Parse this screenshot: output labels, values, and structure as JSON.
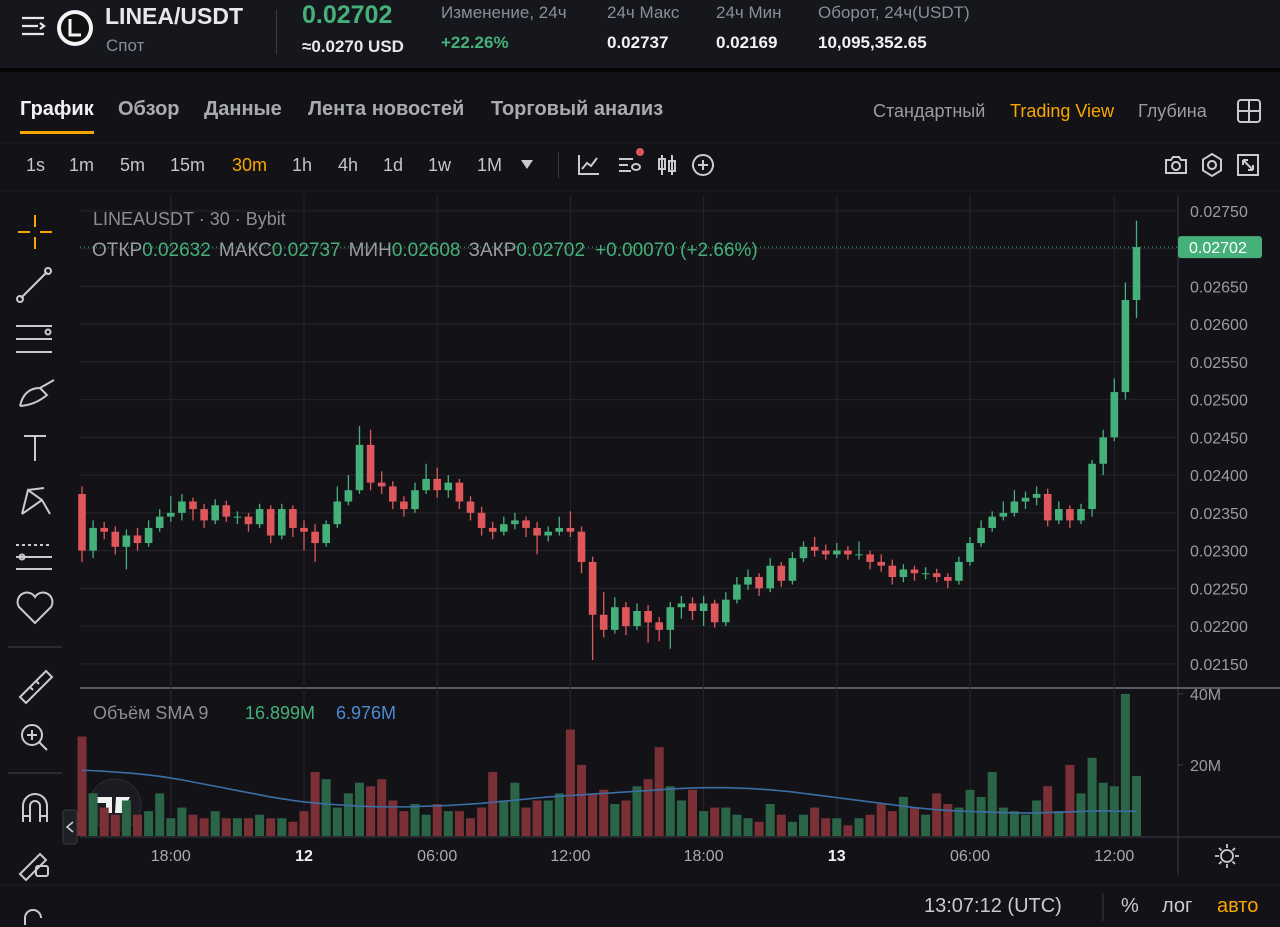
{
  "header": {
    "symbol": "LINEA/USDT",
    "market": "Спот",
    "price": "0.02702",
    "price_usd": "≈0.0270 USD",
    "stats": [
      {
        "label": "Изменение, 24ч",
        "value": "+22.26%",
        "positive": true
      },
      {
        "label": "24ч Макс",
        "value": "0.02737"
      },
      {
        "label": "24ч Мин",
        "value": "0.02169"
      },
      {
        "label": "Оборот, 24ч(USDT)",
        "value": "10,095,352.65"
      }
    ]
  },
  "tabs": [
    "График",
    "Обзор",
    "Данные",
    "Лента новостей",
    "Торговый анализ"
  ],
  "active_tab": 0,
  "views": [
    "Стандартный",
    "Trading View",
    "Глубина"
  ],
  "active_view": 1,
  "timeframes": [
    "1s",
    "1m",
    "5m",
    "15m",
    "30m",
    "1h",
    "4h",
    "1d",
    "1w",
    "1M"
  ],
  "active_timeframe": 4,
  "chart_data": {
    "type": "candlestick",
    "title": "LINEAUSDT · 30 · Bybit",
    "ohlc_legend": [
      {
        "label": "ОТКР",
        "value": "0.02632"
      },
      {
        "label": "МАКС",
        "value": "0.02737"
      },
      {
        "label": "МИН",
        "value": "0.02608"
      },
      {
        "label": "ЗАКР",
        "value": "0.02702"
      }
    ],
    "change": "+0.00070 (+2.66%)",
    "last_price_label": "0.02702",
    "colors": {
      "up": "#45b07a",
      "down": "#e0575b",
      "up_volume": "#2b6547",
      "down_volume": "#7a3035"
    },
    "ylim": [
      0.02118,
      0.02771
    ],
    "yticks": [
      {
        "value": 0.0215,
        "label": "0.02150"
      },
      {
        "value": 0.022,
        "label": "0.02200"
      },
      {
        "value": 0.0225,
        "label": "0.02250"
      },
      {
        "value": 0.023,
        "label": "0.02300"
      },
      {
        "value": 0.0235,
        "label": "0.02350"
      },
      {
        "value": 0.024,
        "label": "0.02400"
      },
      {
        "value": 0.0245,
        "label": "0.02450"
      },
      {
        "value": 0.025,
        "label": "0.02500"
      },
      {
        "value": 0.0255,
        "label": "0.02550"
      },
      {
        "value": 0.026,
        "label": "0.02600"
      },
      {
        "value": 0.0265,
        "label": "0.02650"
      },
      {
        "value": 0.027,
        "label": "0.02700"
      },
      {
        "value": 0.0275,
        "label": "0.02750"
      }
    ],
    "grid": true,
    "xticks": [
      {
        "index": 8,
        "label": "18:00"
      },
      {
        "index": 20,
        "label": "12",
        "day": true
      },
      {
        "index": 32,
        "label": "06:00"
      },
      {
        "index": 44,
        "label": "12:00"
      },
      {
        "index": 56,
        "label": "18:00"
      },
      {
        "index": 68,
        "label": "13",
        "day": true
      },
      {
        "index": 80,
        "label": "06:00"
      },
      {
        "index": 93,
        "label": "12:00"
      }
    ],
    "candles": [
      [
        0.02375,
        0.02385,
        0.02285,
        0.023
      ],
      [
        0.023,
        0.0234,
        0.0229,
        0.0233
      ],
      [
        0.0233,
        0.02338,
        0.02315,
        0.02325
      ],
      [
        0.02325,
        0.02332,
        0.02295,
        0.02305
      ],
      [
        0.02305,
        0.02328,
        0.02275,
        0.0232
      ],
      [
        0.0232,
        0.0233,
        0.023,
        0.0231
      ],
      [
        0.0231,
        0.0234,
        0.02305,
        0.0233
      ],
      [
        0.0233,
        0.02355,
        0.02325,
        0.02345
      ],
      [
        0.02345,
        0.02372,
        0.02338,
        0.0235
      ],
      [
        0.0235,
        0.02375,
        0.0234,
        0.02365
      ],
      [
        0.02365,
        0.0237,
        0.0234,
        0.02355
      ],
      [
        0.02355,
        0.02362,
        0.0233,
        0.0234
      ],
      [
        0.0234,
        0.02368,
        0.02335,
        0.0236
      ],
      [
        0.0236,
        0.02366,
        0.02338,
        0.02345
      ],
      [
        0.02345,
        0.02352,
        0.02335,
        0.02345
      ],
      [
        0.02345,
        0.0235,
        0.02325,
        0.02335
      ],
      [
        0.02335,
        0.02362,
        0.0233,
        0.02355
      ],
      [
        0.02355,
        0.0236,
        0.0231,
        0.0232
      ],
      [
        0.0232,
        0.02362,
        0.02315,
        0.02355
      ],
      [
        0.02355,
        0.0236,
        0.02318,
        0.0233
      ],
      [
        0.0233,
        0.0234,
        0.023,
        0.02325
      ],
      [
        0.02325,
        0.02335,
        0.02285,
        0.0231
      ],
      [
        0.0231,
        0.0234,
        0.02305,
        0.02335
      ],
      [
        0.02335,
        0.02385,
        0.0233,
        0.02365
      ],
      [
        0.02365,
        0.024,
        0.0236,
        0.0238
      ],
      [
        0.0238,
        0.02465,
        0.02375,
        0.0244
      ],
      [
        0.0244,
        0.0246,
        0.0238,
        0.0239
      ],
      [
        0.0239,
        0.02405,
        0.02375,
        0.02385
      ],
      [
        0.02385,
        0.02392,
        0.02355,
        0.02365
      ],
      [
        0.02365,
        0.02372,
        0.02345,
        0.02355
      ],
      [
        0.02355,
        0.0239,
        0.0235,
        0.0238
      ],
      [
        0.0238,
        0.02415,
        0.02375,
        0.02395
      ],
      [
        0.02395,
        0.0241,
        0.0237,
        0.0238
      ],
      [
        0.0238,
        0.024,
        0.0237,
        0.0239
      ],
      [
        0.0239,
        0.02395,
        0.02355,
        0.02365
      ],
      [
        0.02365,
        0.02372,
        0.0234,
        0.0235
      ],
      [
        0.0235,
        0.02358,
        0.0232,
        0.0233
      ],
      [
        0.0233,
        0.02338,
        0.02315,
        0.02325
      ],
      [
        0.02325,
        0.02345,
        0.0232,
        0.02335
      ],
      [
        0.02335,
        0.0235,
        0.02328,
        0.0234
      ],
      [
        0.0234,
        0.02345,
        0.02318,
        0.0233
      ],
      [
        0.0233,
        0.02338,
        0.02295,
        0.0232
      ],
      [
        0.0232,
        0.02332,
        0.02312,
        0.02325
      ],
      [
        0.02325,
        0.02345,
        0.0232,
        0.0233
      ],
      [
        0.0233,
        0.02352,
        0.02318,
        0.02325
      ],
      [
        0.02325,
        0.02332,
        0.0227,
        0.02285
      ],
      [
        0.02285,
        0.02292,
        0.02155,
        0.02215
      ],
      [
        0.02215,
        0.02245,
        0.02185,
        0.02195
      ],
      [
        0.02195,
        0.02238,
        0.0219,
        0.02225
      ],
      [
        0.02225,
        0.02232,
        0.02188,
        0.022
      ],
      [
        0.022,
        0.0223,
        0.02195,
        0.0222
      ],
      [
        0.0222,
        0.02228,
        0.02178,
        0.02205
      ],
      [
        0.02205,
        0.02212,
        0.0218,
        0.02195
      ],
      [
        0.02195,
        0.02232,
        0.0217,
        0.02225
      ],
      [
        0.02225,
        0.0224,
        0.0221,
        0.0223
      ],
      [
        0.0223,
        0.02238,
        0.02208,
        0.0222
      ],
      [
        0.0222,
        0.0224,
        0.022,
        0.0223
      ],
      [
        0.0223,
        0.02235,
        0.02198,
        0.02205
      ],
      [
        0.02205,
        0.02245,
        0.022,
        0.02235
      ],
      [
        0.02235,
        0.02265,
        0.0223,
        0.02255
      ],
      [
        0.02255,
        0.02275,
        0.02248,
        0.02265
      ],
      [
        0.02265,
        0.0227,
        0.0224,
        0.0225
      ],
      [
        0.0225,
        0.0229,
        0.02245,
        0.0228
      ],
      [
        0.0228,
        0.02285,
        0.02252,
        0.0226
      ],
      [
        0.0226,
        0.02298,
        0.02255,
        0.0229
      ],
      [
        0.0229,
        0.02312,
        0.02285,
        0.02305
      ],
      [
        0.02305,
        0.02318,
        0.02292,
        0.023
      ],
      [
        0.023,
        0.02308,
        0.02288,
        0.02295
      ],
      [
        0.02295,
        0.0231,
        0.0229,
        0.023
      ],
      [
        0.023,
        0.02306,
        0.02288,
        0.02295
      ],
      [
        0.02295,
        0.02312,
        0.02288,
        0.02295
      ],
      [
        0.02295,
        0.023,
        0.02275,
        0.02285
      ],
      [
        0.02285,
        0.02295,
        0.02272,
        0.0228
      ],
      [
        0.0228,
        0.02288,
        0.02255,
        0.02265
      ],
      [
        0.02265,
        0.02282,
        0.02258,
        0.02275
      ],
      [
        0.02275,
        0.0228,
        0.0226,
        0.0227
      ],
      [
        0.0227,
        0.02278,
        0.02262,
        0.0227
      ],
      [
        0.0227,
        0.02276,
        0.02258,
        0.02265
      ],
      [
        0.02265,
        0.0227,
        0.0225,
        0.0226
      ],
      [
        0.0226,
        0.02292,
        0.02255,
        0.02285
      ],
      [
        0.02285,
        0.02318,
        0.0228,
        0.0231
      ],
      [
        0.0231,
        0.0234,
        0.02305,
        0.0233
      ],
      [
        0.0233,
        0.02352,
        0.02325,
        0.02345
      ],
      [
        0.02345,
        0.02365,
        0.0234,
        0.0235
      ],
      [
        0.0235,
        0.0238,
        0.02345,
        0.02365
      ],
      [
        0.02365,
        0.02378,
        0.02355,
        0.0237
      ],
      [
        0.0237,
        0.02385,
        0.0236,
        0.02375
      ],
      [
        0.02375,
        0.02382,
        0.02332,
        0.0234
      ],
      [
        0.0234,
        0.02365,
        0.02335,
        0.02355
      ],
      [
        0.02355,
        0.0236,
        0.0233,
        0.0234
      ],
      [
        0.0234,
        0.02362,
        0.02335,
        0.02355
      ],
      [
        0.02355,
        0.0242,
        0.02345,
        0.02415
      ],
      [
        0.02415,
        0.0246,
        0.024,
        0.0245
      ],
      [
        0.0245,
        0.02528,
        0.02445,
        0.0251
      ],
      [
        0.0251,
        0.02655,
        0.025,
        0.02632
      ],
      [
        0.02632,
        0.02737,
        0.02608,
        0.02702
      ]
    ],
    "volume": {
      "title": "Объём SMA 9",
      "legend_values": [
        "16.899M",
        "6.976M"
      ],
      "sma_color": "#3c6ea6",
      "ylim": [
        0,
        41.1
      ],
      "yticks": [
        {
          "value": 20,
          "label": "20M"
        },
        {
          "value": 40,
          "label": "40M"
        }
      ],
      "values": [
        28,
        12,
        8,
        6,
        10,
        6,
        7,
        12,
        5,
        8,
        6,
        5,
        7,
        5,
        5,
        5,
        6,
        5,
        5,
        4,
        7,
        18,
        16,
        8,
        12,
        15,
        14,
        16,
        10,
        7,
        9,
        6,
        9,
        7,
        7,
        5,
        8,
        18,
        10,
        15,
        8,
        10,
        10,
        12,
        30,
        20,
        12,
        13,
        9,
        10,
        14,
        16,
        25,
        14,
        10,
        13,
        7,
        8,
        8,
        6,
        5,
        4,
        9,
        6,
        4,
        6,
        8,
        5,
        5,
        3,
        5,
        6,
        9,
        7,
        11,
        8,
        6,
        12,
        9,
        8,
        13,
        11,
        18,
        8,
        7,
        6,
        10,
        14,
        7,
        20,
        12,
        22,
        15,
        14,
        40,
        16.899
      ],
      "sma": [
        18.5,
        18.4,
        18.2,
        18,
        17.8,
        17.5,
        17.2,
        16.8,
        16.3,
        15.8,
        15.2,
        14.6,
        14,
        13.4,
        12.8,
        12.2,
        11.6,
        11,
        10.5,
        10,
        9.6,
        9.3,
        9,
        8.8,
        8.6,
        8.4,
        8.3,
        8.2,
        8.2,
        8.2,
        8.3,
        8.4,
        8.5,
        8.6,
        8.8,
        9,
        9.2,
        9.5,
        9.8,
        10.1,
        10.4,
        10.7,
        11,
        11.2,
        11.4,
        11.6,
        11.8,
        12,
        12.2,
        12.4,
        12.6,
        12.8,
        13,
        13.2,
        13.4,
        13.5,
        13.6,
        13.6,
        13.6,
        13.5,
        13.4,
        13.2,
        13,
        12.7,
        12.4,
        12,
        11.6,
        11.2,
        10.8,
        10.4,
        10,
        9.6,
        9.2,
        8.8,
        8.4,
        8,
        7.7,
        7.4,
        7.2,
        7,
        6.9,
        6.8,
        6.7,
        6.6,
        6.5,
        6.5,
        6.5,
        6.6,
        6.7,
        6.8,
        6.9,
        7,
        7.1,
        7,
        6.95,
        6.976
      ]
    }
  },
  "footer": {
    "clock": "13:07:12 (UTC)",
    "options": [
      "%",
      "лог",
      "авто"
    ],
    "active_option": 2
  }
}
